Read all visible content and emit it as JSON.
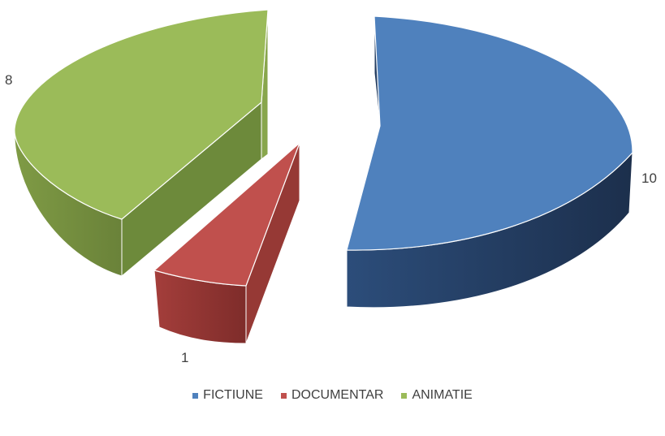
{
  "chart_data": {
    "type": "pie",
    "style": "3d-exploded",
    "categories": [
      "FICTIUNE",
      "DOCUMENTAR",
      "ANIMATIE"
    ],
    "values": [
      10,
      1,
      8
    ],
    "colors": [
      "#4f81bd",
      "#c0504d",
      "#9bbb59"
    ],
    "data_labels": [
      "10",
      "1",
      "8"
    ],
    "legend_position": "bottom"
  }
}
